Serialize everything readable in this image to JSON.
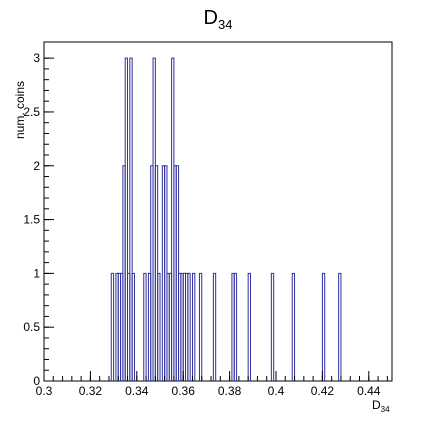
{
  "chart_data": {
    "type": "bar",
    "histogram": true,
    "title": "D",
    "title_subscript": "34",
    "xlabel": "D",
    "xlabel_subscript": "34",
    "ylabel": "num. coins",
    "xlim": [
      0.3,
      0.45
    ],
    "ylim": [
      0,
      3.15
    ],
    "x_ticks": [
      "0.3",
      "0.32",
      "0.34",
      "0.36",
      "0.38",
      "0.4",
      "0.42",
      "0.44"
    ],
    "x_tick_values": [
      0.3,
      0.32,
      0.34,
      0.36,
      0.38,
      0.4,
      0.42,
      0.44
    ],
    "y_ticks": [
      "0",
      "0.5",
      "1",
      "1.5",
      "2",
      "2.5",
      "3"
    ],
    "y_tick_values": [
      0,
      0.5,
      1,
      1.5,
      2,
      2.5,
      3
    ],
    "bin_width": 0.001,
    "bins": [
      {
        "x": 0.329,
        "count": 1
      },
      {
        "x": 0.331,
        "count": 1
      },
      {
        "x": 0.332,
        "count": 1
      },
      {
        "x": 0.333,
        "count": 1
      },
      {
        "x": 0.334,
        "count": 2
      },
      {
        "x": 0.335,
        "count": 3
      },
      {
        "x": 0.336,
        "count": 1
      },
      {
        "x": 0.337,
        "count": 3
      },
      {
        "x": 0.338,
        "count": 1
      },
      {
        "x": 0.343,
        "count": 1
      },
      {
        "x": 0.345,
        "count": 1
      },
      {
        "x": 0.346,
        "count": 2
      },
      {
        "x": 0.347,
        "count": 3
      },
      {
        "x": 0.348,
        "count": 2
      },
      {
        "x": 0.349,
        "count": 1
      },
      {
        "x": 0.351,
        "count": 2
      },
      {
        "x": 0.352,
        "count": 2
      },
      {
        "x": 0.353,
        "count": 1
      },
      {
        "x": 0.354,
        "count": 1
      },
      {
        "x": 0.355,
        "count": 3
      },
      {
        "x": 0.356,
        "count": 2
      },
      {
        "x": 0.357,
        "count": 2
      },
      {
        "x": 0.358,
        "count": 1
      },
      {
        "x": 0.359,
        "count": 1
      },
      {
        "x": 0.36,
        "count": 1
      },
      {
        "x": 0.361,
        "count": 1
      },
      {
        "x": 0.362,
        "count": 1
      },
      {
        "x": 0.364,
        "count": 1
      },
      {
        "x": 0.367,
        "count": 1
      },
      {
        "x": 0.373,
        "count": 1
      },
      {
        "x": 0.381,
        "count": 1
      },
      {
        "x": 0.382,
        "count": 1
      },
      {
        "x": 0.388,
        "count": 1
      },
      {
        "x": 0.398,
        "count": 1
      },
      {
        "x": 0.407,
        "count": 1
      },
      {
        "x": 0.42,
        "count": 1
      },
      {
        "x": 0.427,
        "count": 1
      }
    ],
    "line_color": "#3030a0",
    "grid": false,
    "legend": "none"
  }
}
